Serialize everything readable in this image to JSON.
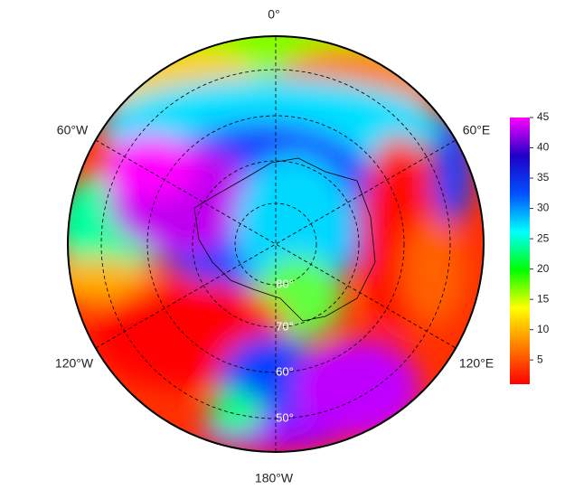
{
  "chart_data": {
    "type": "polar-map",
    "meridian_labels": [
      "0°",
      "60°E",
      "120°E",
      "180°W",
      "120°W",
      "60°W"
    ],
    "latitude_labels": [
      "80°",
      "70°",
      "60°",
      "50°"
    ],
    "colorbar": {
      "clim": [
        1,
        45
      ],
      "ticks": [
        5,
        10,
        15,
        20,
        25,
        30,
        35,
        40,
        45
      ],
      "colormap": [
        "#ff0000",
        "#ff7f00",
        "#ffff00",
        "#00ff00",
        "#00ffff",
        "#0050ff",
        "#2000c8",
        "#ff00ff"
      ]
    }
  }
}
